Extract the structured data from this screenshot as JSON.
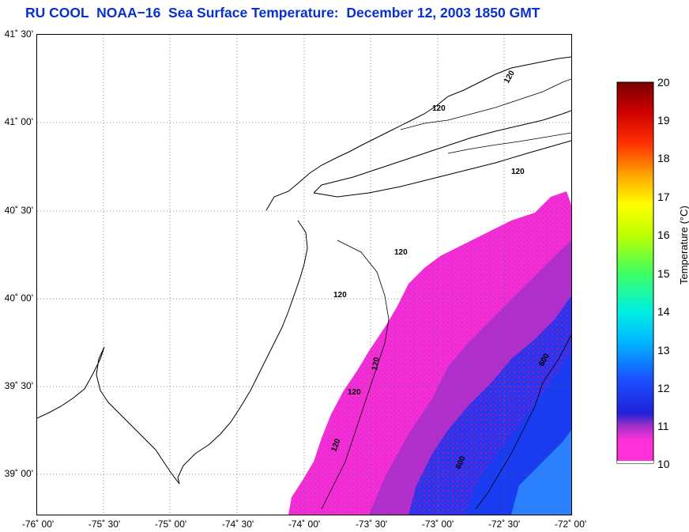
{
  "title": "RU COOL  NOAA−16  Sea Surface Temperature:  December 12, 2003 1850 GMT",
  "lat_labels": [
    "41˚ 30'",
    "41˚ 00'",
    "40˚ 30'",
    "40˚ 00'",
    "39˚ 30'",
    "39˚ 00'"
  ],
  "lon_labels": [
    "-76˚ 00'",
    "-75˚ 30'",
    "-75˚ 00'",
    "-74˚ 30'",
    "-74˚ 00'",
    "-73˚ 30'",
    "-73˚ 00'",
    "-72˚ 30'",
    "-72˚ 00'"
  ],
  "contour_labels": [
    "120",
    "120",
    "120",
    "120",
    "120",
    "120",
    "120",
    "120",
    "600",
    "600"
  ],
  "colorbar": {
    "title": "Temperature (°C)",
    "ticks": [
      "20",
      "19",
      "18",
      "17",
      "16",
      "15",
      "14",
      "13",
      "12",
      "11",
      "10"
    ],
    "min": 10,
    "max": 20
  },
  "colors": {
    "title": "#0a2fd0",
    "coldest": "#ff2ad4",
    "cold": "#2a2ad8",
    "mid": "#00d8ff",
    "warm": "#ffff00",
    "hottest": "#8b0000"
  }
}
